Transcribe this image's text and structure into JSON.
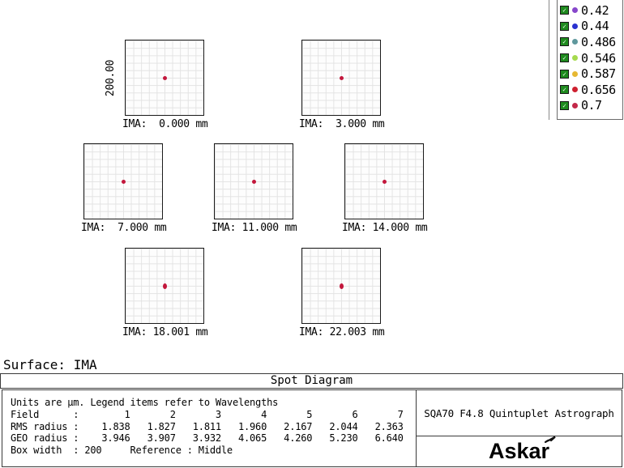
{
  "title_bar": {
    "surface_label": "Surface: IMA",
    "diagram_title": "Spot Diagram"
  },
  "legend": {
    "items": [
      {
        "wavelength": "0.42",
        "color": "#8747cb"
      },
      {
        "wavelength": "0.44",
        "color": "#2a31d0"
      },
      {
        "wavelength": "0.486",
        "color": "#5f989d"
      },
      {
        "wavelength": "0.546",
        "color": "#a6da4e"
      },
      {
        "wavelength": "0.587",
        "color": "#e6b833"
      },
      {
        "wavelength": "0.656",
        "color": "#ce2030"
      },
      {
        "wavelength": "0.7",
        "color": "#c32849"
      }
    ]
  },
  "diagram": {
    "scale_label": "200.00",
    "spot_color": "#c3173c",
    "spots": [
      {
        "label": "IMA:  0.000 mm",
        "row": 0,
        "dot_w": 5,
        "dot_h": 5,
        "has_scale": true
      },
      {
        "label": "IMA:  3.000 mm",
        "row": 0,
        "dot_w": 5,
        "dot_h": 5,
        "has_scale": false
      },
      {
        "label": "IMA:  7.000 mm",
        "row": 1,
        "dot_w": 5,
        "dot_h": 5,
        "has_scale": false
      },
      {
        "label": "IMA: 11.000 mm",
        "row": 1,
        "dot_w": 5,
        "dot_h": 5,
        "has_scale": false
      },
      {
        "label": "IMA: 14.000 mm",
        "row": 1,
        "dot_w": 5,
        "dot_h": 5,
        "has_scale": false
      },
      {
        "label": "IMA: 18.001 mm",
        "row": 2,
        "dot_w": 5,
        "dot_h": 7,
        "has_scale": false
      },
      {
        "label": "IMA: 22.003 mm",
        "row": 2,
        "dot_w": 5,
        "dot_h": 7,
        "has_scale": false
      }
    ]
  },
  "stats": {
    "units_note": "Units are µm. Legend items refer to Wavelengths",
    "field_label": "Field",
    "fields": [
      "1",
      "2",
      "3",
      "4",
      "5",
      "6",
      "7"
    ],
    "rms_label": "RMS radius",
    "rms_values": [
      "1.838",
      "1.827",
      "1.811",
      "1.960",
      "2.167",
      "2.044",
      "2.363"
    ],
    "geo_label": "GEO radius",
    "geo_values": [
      "3.946",
      "3.907",
      "3.932",
      "4.065",
      "4.260",
      "5.230",
      "6.640"
    ],
    "box_width_label": "Box width",
    "box_width_value": "200",
    "reference_label": "Reference",
    "reference_value": "Middle"
  },
  "branding": {
    "product": "SQA70 F4.8 Quintuplet Astrograph",
    "logo": "Askar"
  },
  "chart_data": {
    "type": "scatter",
    "title": "Spot Diagram",
    "surface": "IMA",
    "legend_position": "top-right",
    "wavelengths_um": [
      0.42,
      0.44,
      0.486,
      0.546,
      0.587,
      0.656,
      0.7
    ],
    "wavelength_colors": [
      "#8747cb",
      "#2a31d0",
      "#5f989d",
      "#a6da4e",
      "#e6b833",
      "#ce2030",
      "#c32849"
    ],
    "fields": [
      1,
      2,
      3,
      4,
      5,
      6,
      7
    ],
    "field_image_positions_mm": [
      0.0,
      3.0,
      7.0,
      11.0,
      14.0,
      18.001,
      22.003
    ],
    "rms_radius_um": [
      1.838,
      1.827,
      1.811,
      1.96,
      2.167,
      2.044,
      2.363
    ],
    "geo_radius_um": [
      3.946,
      3.907,
      3.932,
      4.065,
      4.26,
      5.23,
      6.64
    ],
    "box_width_um": 200,
    "box_scale_label": "200.00",
    "reference": "Middle",
    "grid": true,
    "notes": "Each sub-box is 200 µm wide; all spots concentrated near center of each field box"
  }
}
